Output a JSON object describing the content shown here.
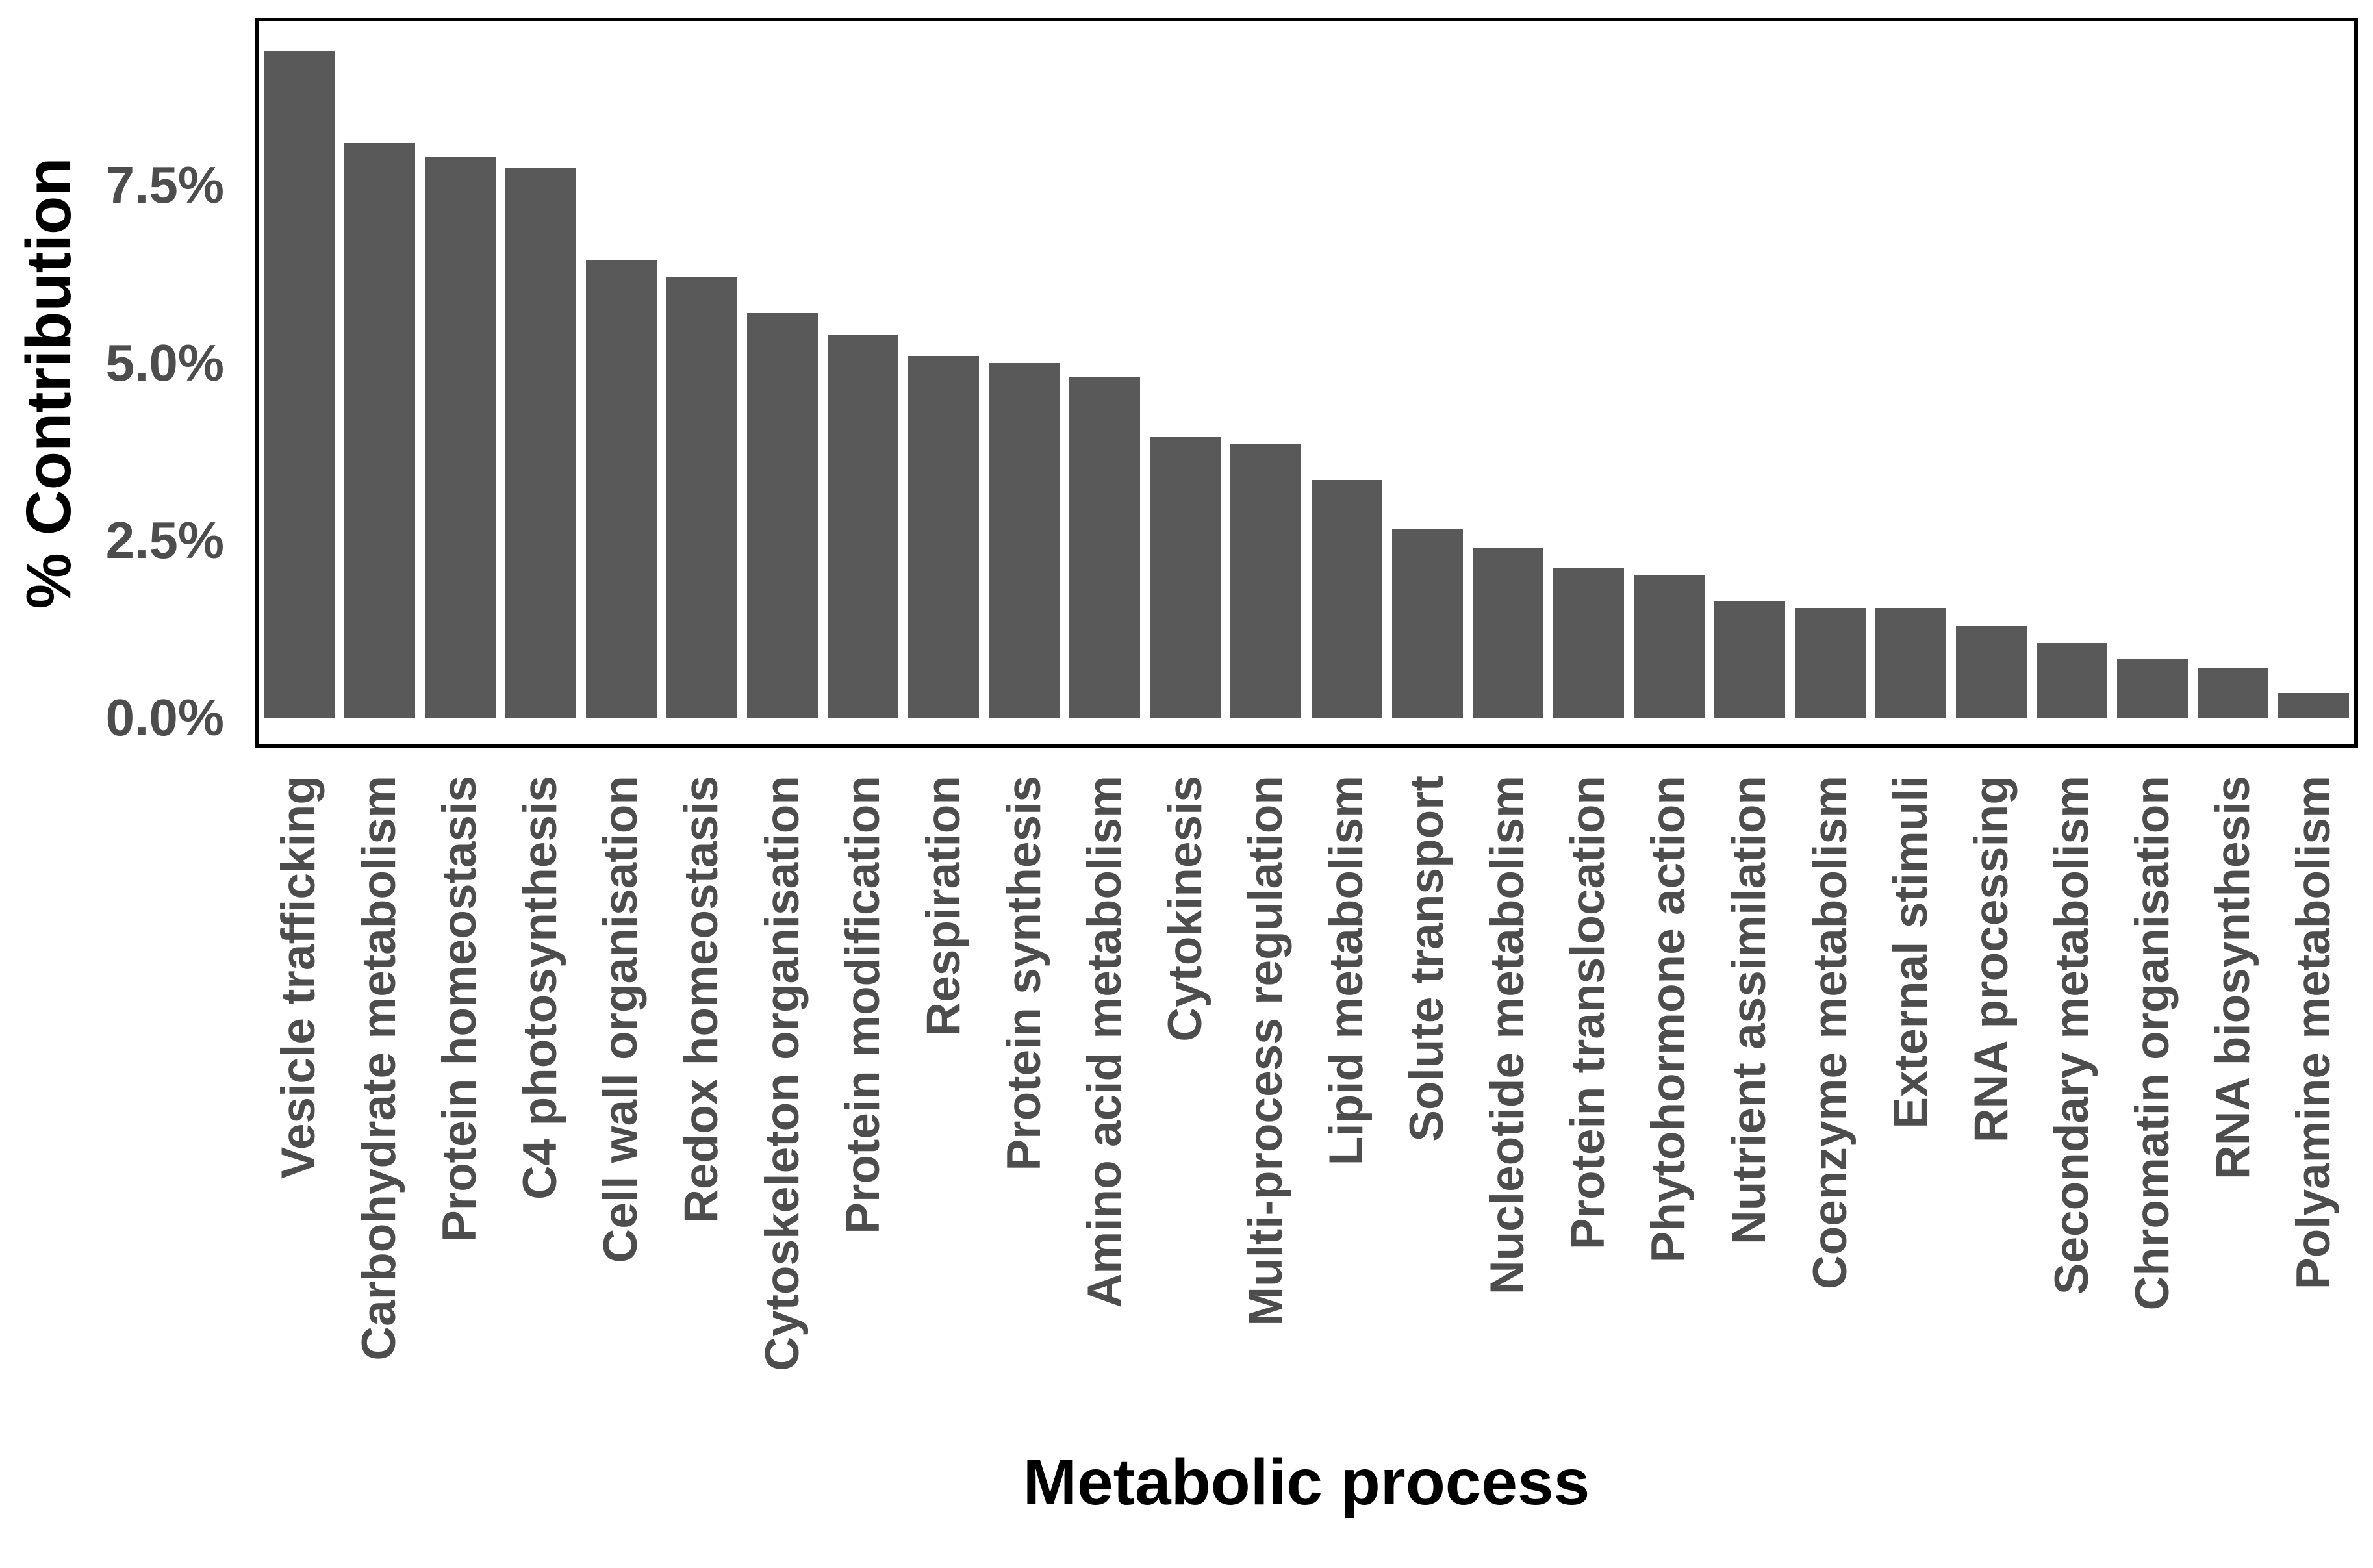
{
  "chart_data": {
    "type": "bar",
    "title": "",
    "xlabel": "Metabolic process",
    "ylabel": "% Contribution",
    "categories": [
      "Vesicle trafficking",
      "Carbohydrate metabolism",
      "Protein homeostasis",
      "C4 photosynthesis",
      "Cell wall organisation",
      "Redox homeostasis",
      "Cytoskeleton organisation",
      "Protein modification",
      "Respiration",
      "Protein synthesis",
      "Amino acid metabolism",
      "Cytokinesis",
      "Multi-process regulation",
      "Lipid metabolism",
      "Solute transport",
      "Nucleotide metabolism",
      "Protein translocation",
      "Phytohormone action",
      "Nutrient assimilation",
      "Coenzyme metabolism",
      "External stimuli",
      "RNA processing",
      "Secondary metabolism",
      "Chromatin organisation",
      "RNA biosynthesis",
      "Polyamine metabolism"
    ],
    "values": [
      9.4,
      8.1,
      7.9,
      7.75,
      6.45,
      6.2,
      5.7,
      5.4,
      5.1,
      5.0,
      4.8,
      3.95,
      3.85,
      3.35,
      2.65,
      2.4,
      2.1,
      2.0,
      1.65,
      1.55,
      1.55,
      1.3,
      1.05,
      0.82,
      0.7,
      0.35
    ],
    "y_ticks": [
      {
        "label": "0.0%",
        "value": 0.0
      },
      {
        "label": "2.5%",
        "value": 2.5
      },
      {
        "label": "5.0%",
        "value": 5.0
      },
      {
        "label": "7.5%",
        "value": 7.5
      }
    ],
    "ylim": [
      -0.4,
      9.86
    ],
    "grid": false,
    "legend_position": "none",
    "bar_color": "#595959",
    "tick_label_color": "#4d4d4d",
    "axis_title_color": "#000000",
    "panel_border_color": "#000000",
    "background_color": "#ffffff"
  }
}
